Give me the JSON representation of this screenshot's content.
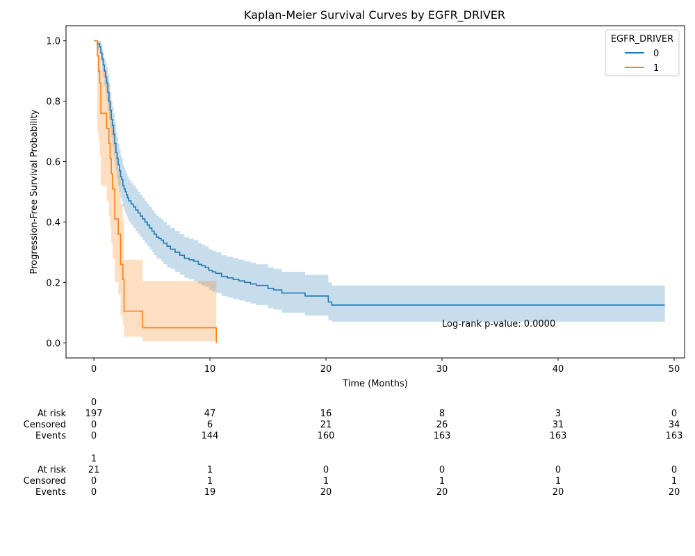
{
  "chart_data": {
    "type": "line",
    "title": "Kaplan-Meier Survival Curves by EGFR_DRIVER",
    "xlabel": "Time (Months)",
    "ylabel": "Progression-Free Survival Probability",
    "xlim": [
      -2.4,
      50.9
    ],
    "ylim": [
      -0.05,
      1.05
    ],
    "x_ticks": [
      0,
      10,
      20,
      30,
      40,
      50
    ],
    "y_ticks": [
      0.0,
      0.2,
      0.4,
      0.6,
      0.8,
      1.0
    ],
    "x_tick_labels": [
      "0",
      "10",
      "20",
      "30",
      "40",
      "50"
    ],
    "y_tick_labels": [
      "0.0",
      "0.2",
      "0.4",
      "0.6",
      "0.8",
      "1.0"
    ],
    "grid": false,
    "legend": {
      "title": "EGFR_DRIVER",
      "placement": "top-right",
      "entries": [
        "0",
        "1"
      ]
    },
    "annotation": {
      "text": "Log-rank p-value: 0.0000",
      "x": 30,
      "y": 0.065
    },
    "series": [
      {
        "name": "0",
        "color": "#1f77b4",
        "ci_color": "#1f77b4",
        "x": [
          0,
          0.3,
          0.5,
          0.6,
          0.7,
          0.8,
          0.9,
          1.0,
          1.1,
          1.2,
          1.3,
          1.4,
          1.5,
          1.6,
          1.7,
          1.8,
          1.9,
          2.0,
          2.1,
          2.2,
          2.3,
          2.4,
          2.5,
          2.6,
          2.7,
          2.8,
          2.9,
          3.0,
          3.2,
          3.4,
          3.6,
          3.8,
          4.0,
          4.2,
          4.4,
          4.6,
          4.8,
          5.0,
          5.2,
          5.4,
          5.6,
          5.8,
          6.0,
          6.3,
          6.6,
          7.0,
          7.4,
          7.8,
          8.2,
          8.6,
          9.0,
          9.3,
          9.6,
          9.9,
          10.2,
          10.5,
          11.0,
          11.5,
          12.0,
          12.5,
          13.0,
          13.5,
          14.0,
          15.0,
          15.5,
          16.2,
          18.2,
          20.2,
          20.5,
          49.2
        ],
        "y": [
          1.0,
          0.99,
          0.98,
          0.96,
          0.94,
          0.92,
          0.9,
          0.88,
          0.86,
          0.83,
          0.8,
          0.77,
          0.74,
          0.72,
          0.69,
          0.66,
          0.63,
          0.61,
          0.59,
          0.57,
          0.55,
          0.54,
          0.52,
          0.51,
          0.5,
          0.49,
          0.48,
          0.47,
          0.46,
          0.45,
          0.44,
          0.43,
          0.42,
          0.41,
          0.4,
          0.39,
          0.38,
          0.37,
          0.36,
          0.35,
          0.345,
          0.34,
          0.33,
          0.32,
          0.31,
          0.3,
          0.29,
          0.28,
          0.275,
          0.27,
          0.26,
          0.255,
          0.25,
          0.24,
          0.235,
          0.23,
          0.22,
          0.215,
          0.21,
          0.205,
          0.2,
          0.195,
          0.19,
          0.18,
          0.175,
          0.165,
          0.155,
          0.135,
          0.125,
          0.125
        ],
        "ci_lower": [
          1.0,
          0.97,
          0.96,
          0.93,
          0.9,
          0.88,
          0.85,
          0.83,
          0.8,
          0.77,
          0.74,
          0.71,
          0.68,
          0.65,
          0.62,
          0.59,
          0.57,
          0.54,
          0.52,
          0.5,
          0.48,
          0.47,
          0.45,
          0.44,
          0.43,
          0.42,
          0.41,
          0.4,
          0.39,
          0.38,
          0.37,
          0.36,
          0.35,
          0.34,
          0.33,
          0.32,
          0.31,
          0.3,
          0.29,
          0.28,
          0.278,
          0.27,
          0.26,
          0.25,
          0.245,
          0.235,
          0.225,
          0.215,
          0.21,
          0.205,
          0.195,
          0.19,
          0.185,
          0.175,
          0.17,
          0.165,
          0.155,
          0.15,
          0.145,
          0.14,
          0.135,
          0.13,
          0.125,
          0.115,
          0.11,
          0.1,
          0.09,
          0.075,
          0.07,
          0.07
        ],
        "ci_upper": [
          1.0,
          1.0,
          1.0,
          0.99,
          0.97,
          0.96,
          0.94,
          0.93,
          0.91,
          0.89,
          0.86,
          0.83,
          0.8,
          0.78,
          0.76,
          0.73,
          0.7,
          0.68,
          0.66,
          0.64,
          0.62,
          0.61,
          0.59,
          0.58,
          0.57,
          0.56,
          0.55,
          0.54,
          0.53,
          0.52,
          0.51,
          0.5,
          0.49,
          0.48,
          0.47,
          0.46,
          0.45,
          0.44,
          0.43,
          0.42,
          0.415,
          0.41,
          0.4,
          0.39,
          0.38,
          0.37,
          0.36,
          0.35,
          0.345,
          0.34,
          0.33,
          0.325,
          0.32,
          0.31,
          0.305,
          0.3,
          0.29,
          0.285,
          0.28,
          0.275,
          0.27,
          0.265,
          0.26,
          0.25,
          0.245,
          0.235,
          0.225,
          0.2,
          0.19,
          0.19
        ]
      },
      {
        "name": "1",
        "color": "#ff7f0e",
        "ci_color": "#ff7f0e",
        "x": [
          0,
          0.3,
          0.4,
          0.5,
          0.6,
          1.1,
          1.3,
          1.4,
          1.5,
          1.6,
          1.8,
          2.1,
          2.3,
          2.5,
          2.6,
          4.2,
          10.5,
          10.55
        ],
        "y": [
          1.0,
          0.95,
          0.9,
          0.86,
          0.76,
          0.71,
          0.66,
          0.61,
          0.56,
          0.51,
          0.41,
          0.36,
          0.26,
          0.21,
          0.105,
          0.05,
          0.05,
          0.0
        ],
        "ci_lower": [
          1.0,
          0.7,
          0.67,
          0.62,
          0.52,
          0.47,
          0.42,
          0.38,
          0.33,
          0.28,
          0.2,
          0.16,
          0.09,
          0.06,
          0.02,
          0.005,
          0.005,
          0.005
        ],
        "ci_upper": [
          1.0,
          1.0,
          0.99,
          0.97,
          0.9,
          0.87,
          0.83,
          0.79,
          0.75,
          0.71,
          0.62,
          0.57,
          0.46,
          0.41,
          0.275,
          0.205,
          0.205,
          0.205
        ]
      }
    ]
  },
  "risk_table": {
    "time_points": [
      0,
      10,
      20,
      30,
      40,
      50
    ],
    "row_labels": [
      "At risk",
      "Censored",
      "Events"
    ],
    "groups": [
      {
        "name": "0",
        "at_risk": [
          "197",
          "47",
          "16",
          "8",
          "3",
          "0"
        ],
        "censored": [
          "0",
          "6",
          "21",
          "26",
          "31",
          "34"
        ],
        "events": [
          "0",
          "144",
          "160",
          "163",
          "163",
          "163"
        ]
      },
      {
        "name": "1",
        "at_risk": [
          "21",
          "1",
          "0",
          "0",
          "0",
          "0"
        ],
        "censored": [
          "0",
          "1",
          "1",
          "1",
          "1",
          "1"
        ],
        "events": [
          "0",
          "19",
          "20",
          "20",
          "20",
          "20"
        ]
      }
    ]
  }
}
